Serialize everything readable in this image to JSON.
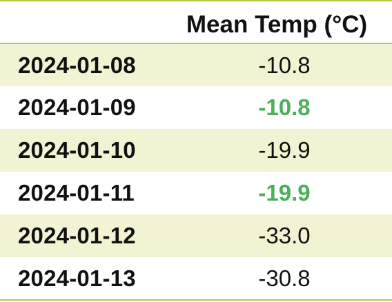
{
  "table": {
    "columns": [
      "",
      "Mean Temp (°C)"
    ],
    "rows": [
      {
        "date": "2024-01-08",
        "mean_temp": "-10.8",
        "highlight": false
      },
      {
        "date": "2024-01-09",
        "mean_temp": "-10.8",
        "highlight": true
      },
      {
        "date": "2024-01-10",
        "mean_temp": "-19.9",
        "highlight": false
      },
      {
        "date": "2024-01-11",
        "mean_temp": "-19.9",
        "highlight": true
      },
      {
        "date": "2024-01-12",
        "mean_temp": "-33.0",
        "highlight": false
      },
      {
        "date": "2024-01-13",
        "mean_temp": "-30.8",
        "highlight": false
      }
    ],
    "colors": {
      "rule": "#b9c74a",
      "stripe": "#f1f3d3",
      "highlight_text": "#4caf5a"
    }
  }
}
